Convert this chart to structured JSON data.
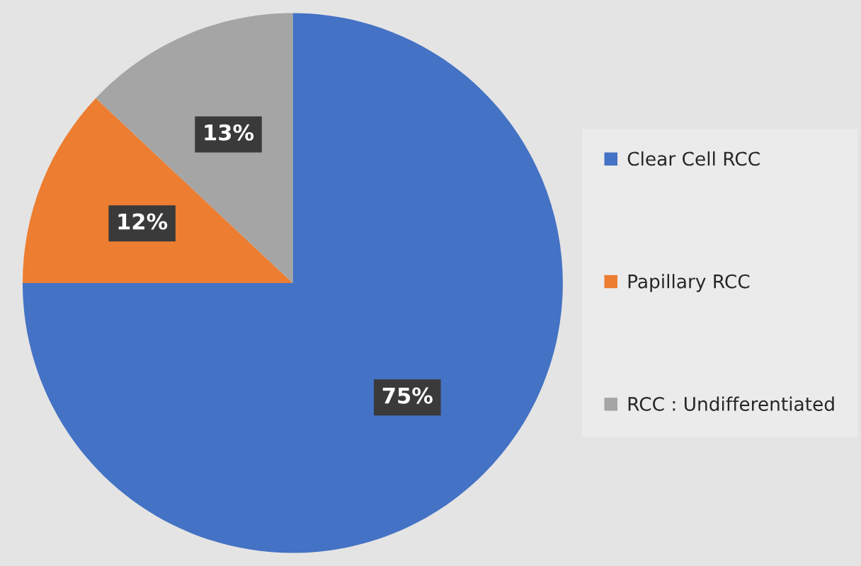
{
  "chart_data": {
    "type": "pie",
    "categories": [
      "Clear Cell RCC",
      "Papillary RCC",
      "RCC : Undifferentiated"
    ],
    "values": [
      75,
      12,
      13
    ],
    "colors": [
      "#4472c4",
      "#ed7d31",
      "#a5a5a5"
    ],
    "value_labels": [
      "75%",
      "12%",
      "13%"
    ],
    "legend": "right"
  }
}
